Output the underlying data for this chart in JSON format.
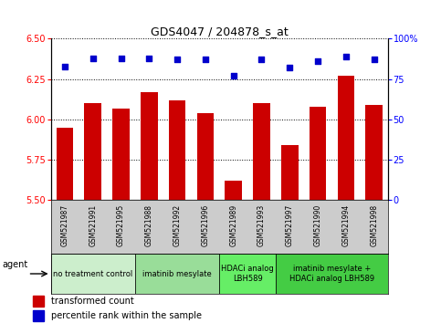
{
  "title": "GDS4047 / 204878_s_at",
  "samples": [
    "GSM521987",
    "GSM521991",
    "GSM521995",
    "GSM521988",
    "GSM521992",
    "GSM521996",
    "GSM521989",
    "GSM521993",
    "GSM521997",
    "GSM521990",
    "GSM521994",
    "GSM521998"
  ],
  "bar_values": [
    5.95,
    6.1,
    6.07,
    6.17,
    6.12,
    6.04,
    5.62,
    6.1,
    5.84,
    6.08,
    6.27,
    6.09
  ],
  "dot_values": [
    83,
    88,
    88,
    88,
    87,
    87,
    77,
    87,
    82,
    86,
    89,
    87
  ],
  "ylim_left": [
    5.5,
    6.5
  ],
  "ylim_right": [
    0,
    100
  ],
  "yticks_left": [
    5.5,
    5.75,
    6.0,
    6.25,
    6.5
  ],
  "yticks_right": [
    0,
    25,
    50,
    75,
    100
  ],
  "bar_color": "#cc0000",
  "dot_color": "#0000cc",
  "agent_groups": [
    {
      "label": "no treatment control",
      "start": 0,
      "end": 3,
      "color": "#cceecc"
    },
    {
      "label": "imatinib mesylate",
      "start": 3,
      "end": 6,
      "color": "#99dd99"
    },
    {
      "label": "HDACi analog\nLBH589",
      "start": 6,
      "end": 8,
      "color": "#66ee66"
    },
    {
      "label": "imatinib mesylate +\nHDACi analog LBH589",
      "start": 8,
      "end": 12,
      "color": "#44cc44"
    }
  ],
  "legend_bar_label": "transformed count",
  "legend_dot_label": "percentile rank within the sample",
  "agent_label": "agent",
  "sample_bg_color": "#cccccc",
  "title_fontsize": 9,
  "tick_fontsize": 7,
  "sample_fontsize": 5.5,
  "agent_fontsize": 6,
  "legend_fontsize": 7
}
